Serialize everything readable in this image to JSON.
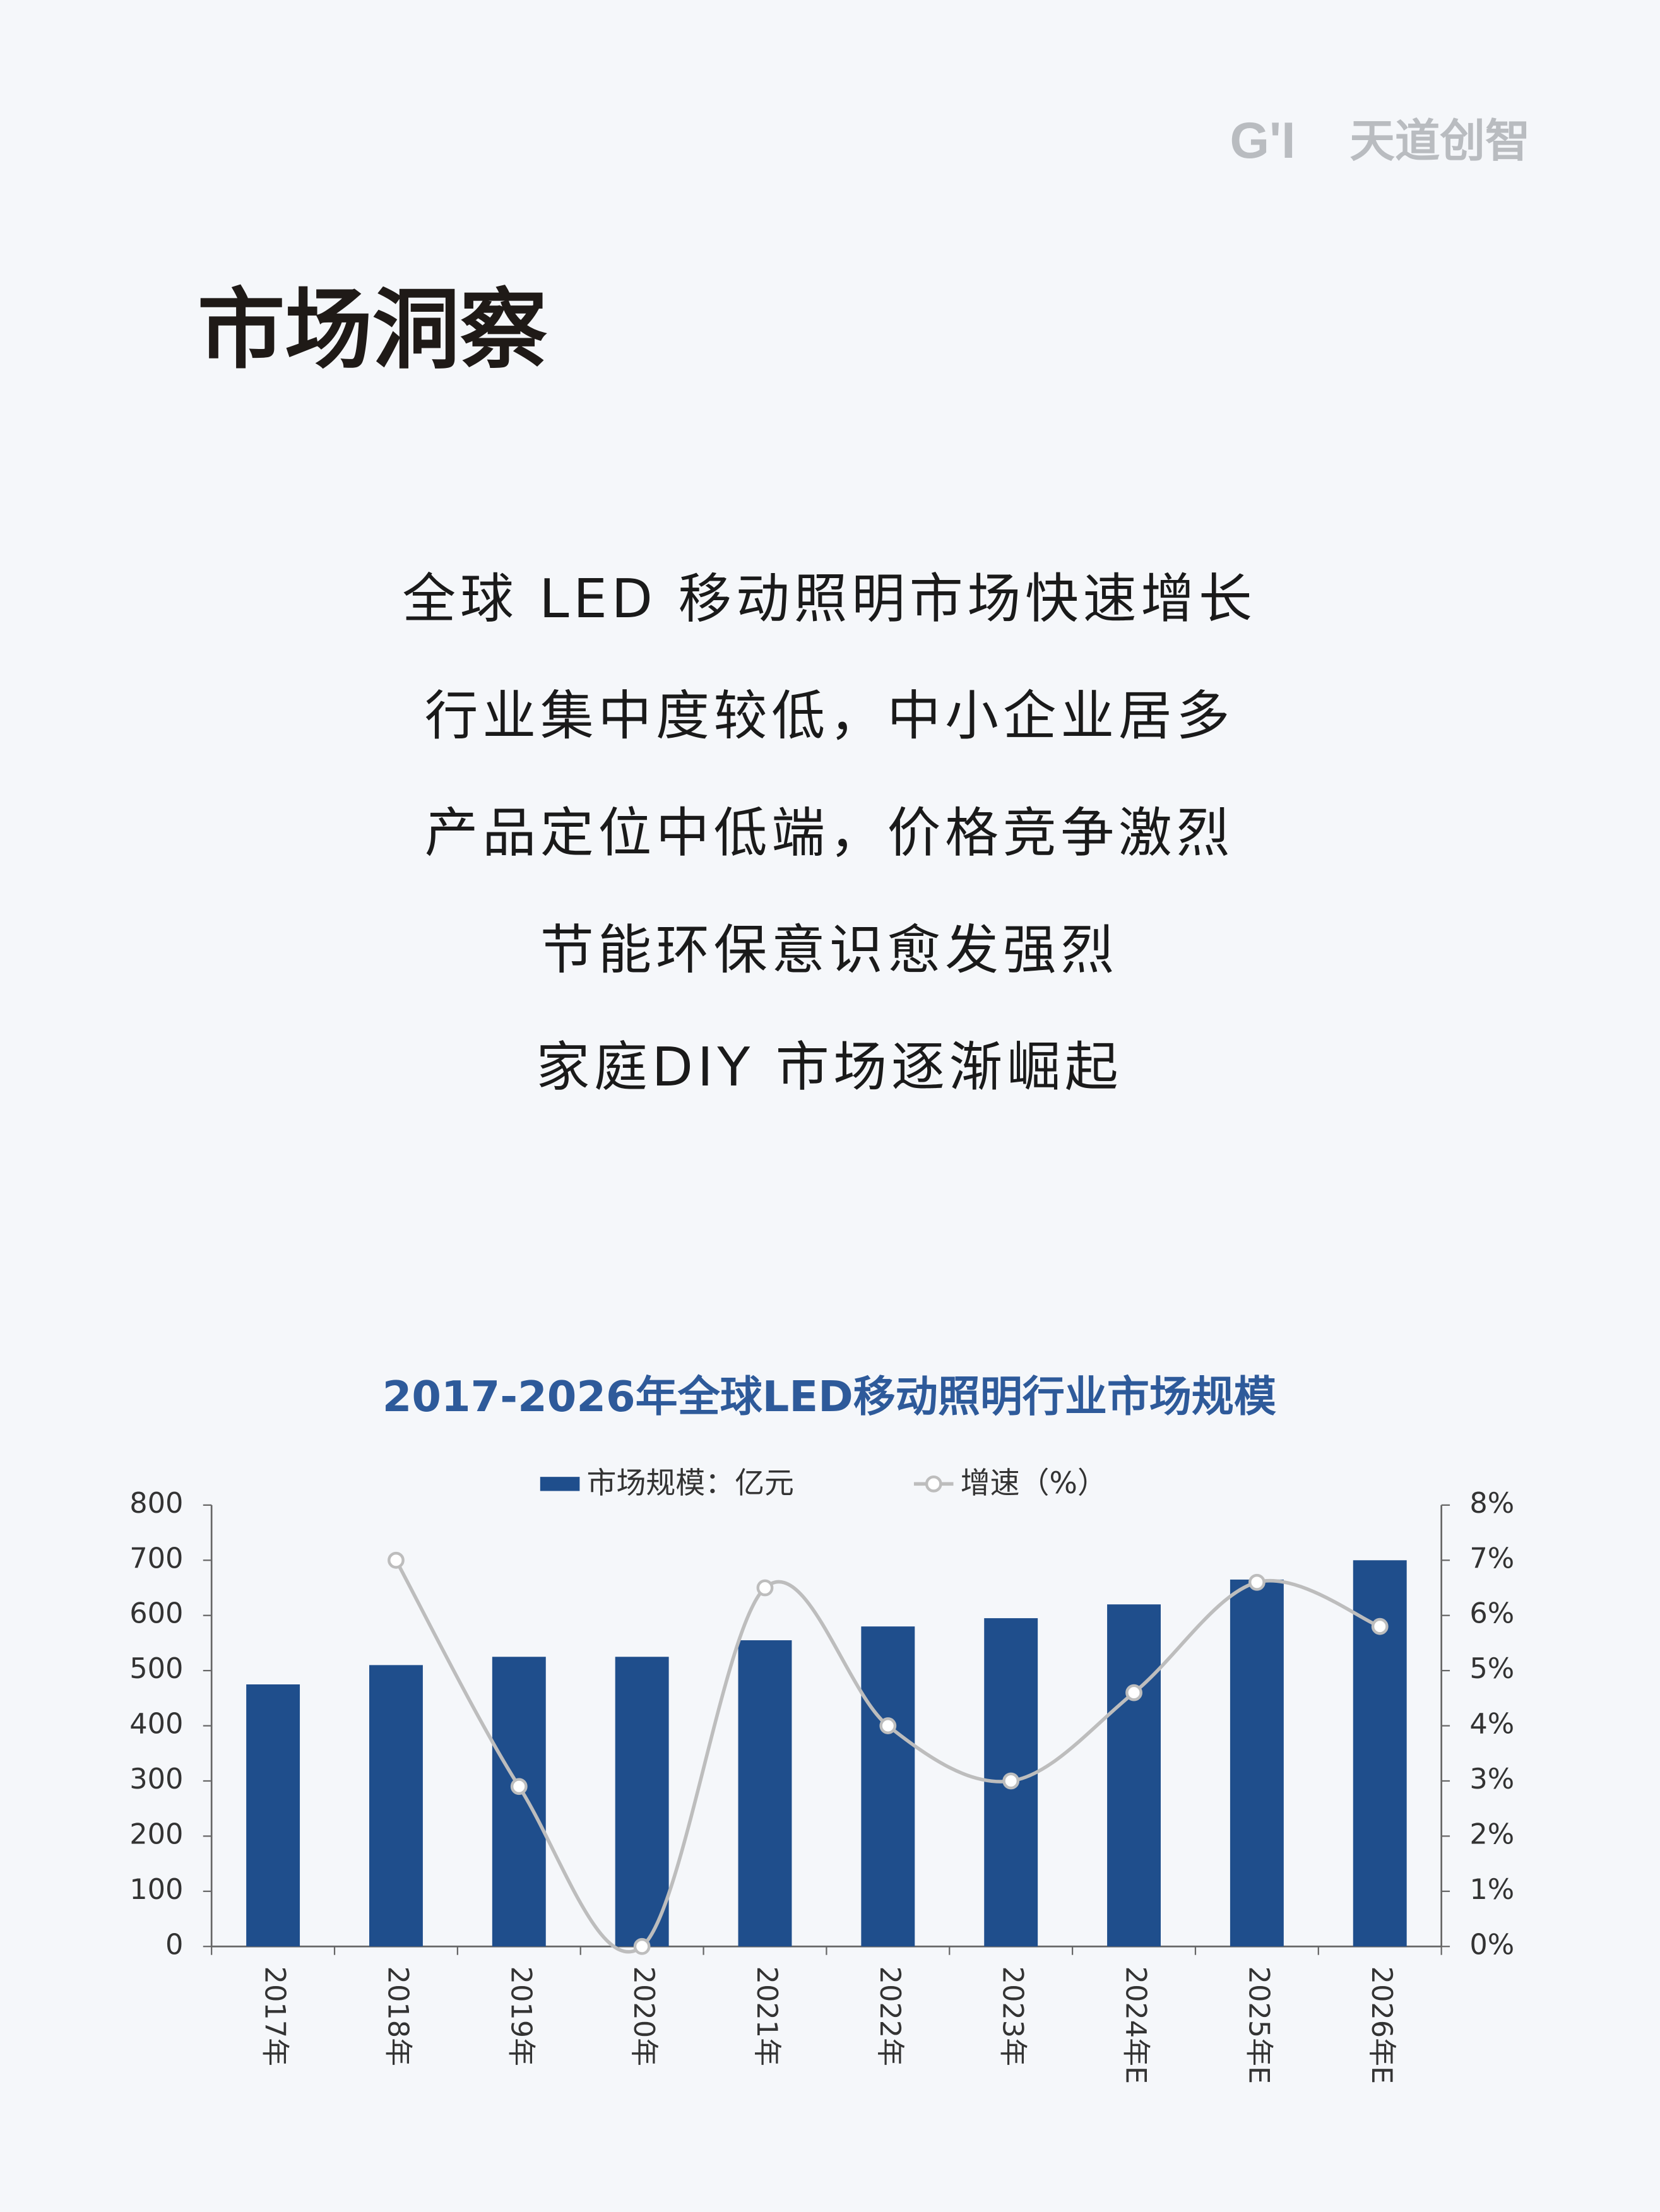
{
  "header": {
    "brand": "天道创智",
    "title": "市场洞察"
  },
  "points": [
    "全球 LED 移动照明市场快速增长",
    "行业集中度较低，中小企业居多",
    "产品定位中低端，价格竞争激烈",
    "节能环保意识愈发强烈",
    "家庭DIY 市场逐渐崛起"
  ],
  "chart_data": {
    "type": "bar",
    "title": "2017-2026年全球LED移动照明行业市场规模",
    "categories": [
      "2017年",
      "2018年",
      "2019年",
      "2020年",
      "2021年",
      "2022年",
      "2023年",
      "2024年E",
      "2025年E",
      "2026年E"
    ],
    "series": [
      {
        "name": "市场规模：亿元",
        "color": "#1f4e8c",
        "type": "bar",
        "values": [
          475,
          510,
          525,
          525,
          555,
          580,
          595,
          620,
          665,
          700
        ]
      },
      {
        "name": "增速（%）",
        "color": "#bdbdbd",
        "type": "line",
        "axis": "y2",
        "values": [
          null,
          7.0,
          2.9,
          0.0,
          6.5,
          4.0,
          3.0,
          4.6,
          6.6,
          5.8
        ]
      }
    ],
    "ylim": [
      0,
      800
    ],
    "yticks": [
      0,
      100,
      200,
      300,
      400,
      500,
      600,
      700,
      800
    ],
    "y2lim": [
      0,
      8
    ],
    "y2ticks": [
      {
        "value": 0,
        "label": "0%"
      },
      {
        "value": 1,
        "label": "1%"
      },
      {
        "value": 2,
        "label": "2%"
      },
      {
        "value": 3,
        "label": "3%"
      },
      {
        "value": 4,
        "label": "4%"
      },
      {
        "value": 5,
        "label": "5%"
      },
      {
        "value": 6,
        "label": "6%"
      },
      {
        "value": 7,
        "label": "7%"
      },
      {
        "value": 8,
        "label": "8%"
      }
    ]
  }
}
